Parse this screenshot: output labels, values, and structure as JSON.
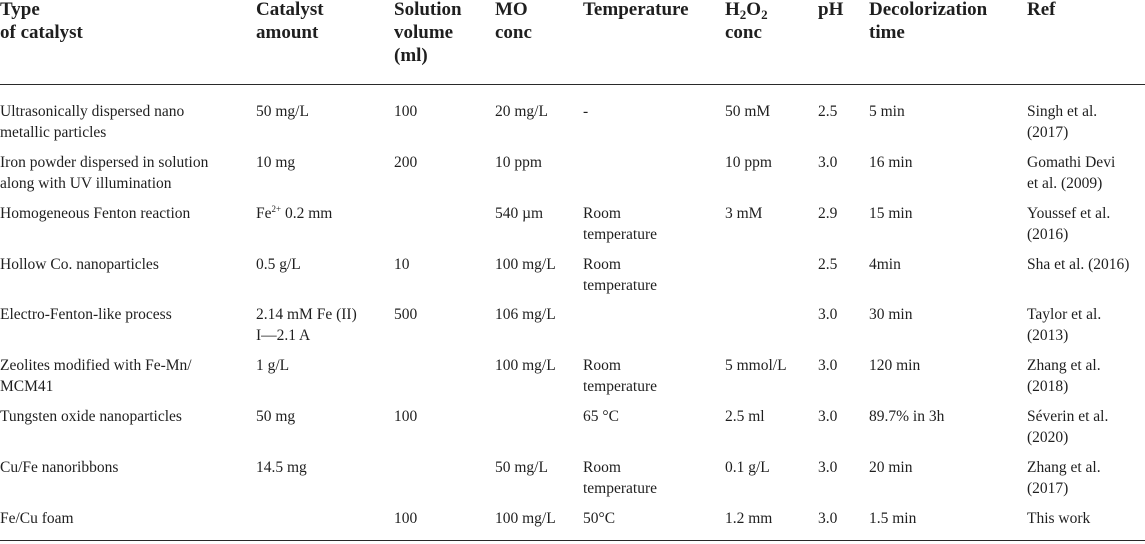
{
  "headers": {
    "type": "Type\nof catalyst",
    "amount": "Catalyst\namount",
    "volume": "Solution\nvolume\n(ml)",
    "mo": "MO\nconc",
    "temp": "Temperature",
    "h2o2_prefix": "H",
    "h2o2_sub1": "2",
    "h2o2_mid": "O",
    "h2o2_sub2": "2",
    "h2o2_suffix": "conc",
    "ph": "pH",
    "time": "Decolorization\ntime",
    "ref": "Ref"
  },
  "rows": [
    {
      "type": "Ultrasonically dispersed nano\nmetallic particles",
      "amount": "50 mg/L",
      "volume": "100",
      "mo": "20 mg/L",
      "temp": "-",
      "h2o2": "50 mM",
      "ph": "2.5",
      "time": "5 min",
      "ref": "Singh et al.\n(2017)"
    },
    {
      "type": "Iron powder dispersed in solution\nalong with UV illumination",
      "amount": "10 mg",
      "volume": "200",
      "mo": "10 ppm",
      "temp": "",
      "h2o2": "10 ppm",
      "ph": "3.0",
      "time": "16 min",
      "ref": "Gomathi Devi\net al. (2009)"
    },
    {
      "type": "Homogeneous Fenton reaction",
      "amount_prefix": "Fe",
      "amount_sup": "2+",
      "amount_suffix": " 0.2 mm",
      "volume": "",
      "mo": "540 µm",
      "temp": "Room\ntemperature",
      "h2o2": "3 mM",
      "ph": "2.9",
      "time": "15 min",
      "ref": "Youssef et al.\n(2016)"
    },
    {
      "type": "Hollow Co. nanoparticles",
      "amount": "0.5 g/L",
      "volume": "10",
      "mo": "100 mg/L",
      "temp": "Room\ntemperature",
      "h2o2": "",
      "ph": "2.5",
      "time": "4min",
      "ref": "Sha et al. (2016)"
    },
    {
      "type": "Electro-Fenton-like process",
      "amount": "2.14 mM Fe (II)\nI—2.1 A",
      "volume": "500",
      "mo": "106 mg/L",
      "temp": "",
      "h2o2": "",
      "ph": "3.0",
      "time": "30 min",
      "ref": "Taylor et al.\n(2013)"
    },
    {
      "type": "Zeolites modified with Fe-Mn/\nMCM41",
      "amount": "1 g/L",
      "volume": "",
      "mo": "100 mg/L",
      "temp": "Room\ntemperature",
      "h2o2": "5 mmol/L",
      "ph": "3.0",
      "time": "120 min",
      "ref": "Zhang et al.\n(2018)"
    },
    {
      "type": "Tungsten oxide nanoparticles",
      "amount": "50 mg",
      "volume": "100",
      "mo": "",
      "temp": "65 °C",
      "h2o2": "2.5 ml",
      "ph": "3.0",
      "time": "89.7% in 3h",
      "ref": "Séverin et al.\n(2020)"
    },
    {
      "type": "Cu/Fe nanoribbons",
      "amount": "14.5 mg",
      "volume": "",
      "mo": "50 mg/L",
      "temp": "Room\ntemperature",
      "h2o2": "0.1 g/L",
      "ph": "3.0",
      "time": "20 min",
      "ref": "Zhang et al.\n(2017)"
    },
    {
      "type": "Fe/Cu foam",
      "amount": "",
      "volume": "100",
      "mo": "100 mg/L",
      "temp": "50°C",
      "h2o2": "1.2 mm",
      "ph": "3.0",
      "time": "1.5 min",
      "ref": "This work"
    }
  ]
}
